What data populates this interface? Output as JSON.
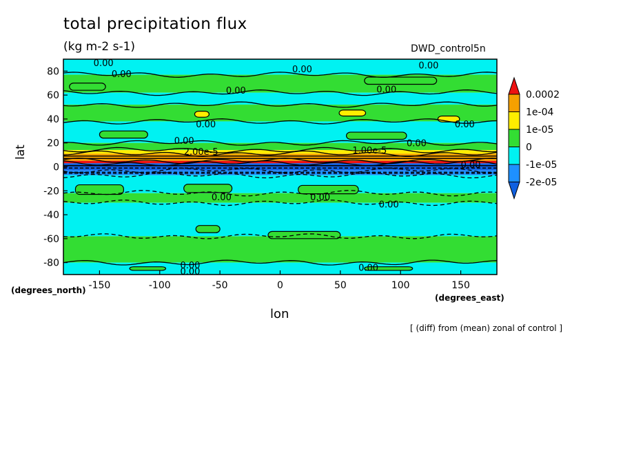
{
  "chart_data": {
    "type": "heatmap",
    "title": "total precipitation flux",
    "units": "(kg m-2 s-1)",
    "run_label": "DWD_control5n",
    "xlabel": "lon",
    "ylabel": "lat",
    "x_unit_label": "(degrees_east)",
    "y_unit_label": "(degrees_north)",
    "note": "[ (diff) from (mean) zonal of control ]",
    "xlim": [
      -180,
      180
    ],
    "ylim": [
      -90,
      90
    ],
    "x_ticks": [
      -150,
      -100,
      -50,
      0,
      50,
      100,
      150
    ],
    "y_ticks": [
      -80,
      -60,
      -40,
      -20,
      0,
      20,
      40,
      60,
      80
    ],
    "x_tick_labels": [
      "-150",
      "-100",
      "-50",
      "0",
      "50",
      "100",
      "150"
    ],
    "y_tick_labels": [
      "-80",
      "-60",
      "-40",
      "-20",
      "0",
      "20",
      "40",
      "60",
      "80"
    ],
    "colorbar": {
      "labels": [
        "0.0002",
        "1e-04",
        "1e-05",
        "0",
        "-1e-05",
        "-2e-05"
      ],
      "bins": [
        {
          "lo": "0.0002",
          "color": "#ee1111"
        },
        {
          "lo": "1e-04",
          "hi": "0.0002",
          "color": "#f5a000"
        },
        {
          "lo": "1e-05",
          "hi": "1e-04",
          "color": "#ffee00"
        },
        {
          "lo": "0",
          "hi": "1e-05",
          "color": "#33dd33"
        },
        {
          "lo": "-1e-05",
          "hi": "0",
          "color": "#00f2f2"
        },
        {
          "lo": "-2e-05",
          "hi": "-1e-05",
          "color": "#1e90ff"
        },
        {
          "hi": "-2e-05",
          "color": "#1060e0"
        }
      ]
    },
    "zonal_bands": [
      {
        "lat_min": 77,
        "lat_max": 90,
        "color": "#00f2f2"
      },
      {
        "lat_min": 62,
        "lat_max": 77,
        "color": "#33dd33"
      },
      {
        "lat_min": 52,
        "lat_max": 62,
        "color": "#00f2f2"
      },
      {
        "lat_min": 38,
        "lat_max": 52,
        "color": "#33dd33"
      },
      {
        "lat_min": 20,
        "lat_max": 38,
        "color": "#00f2f2"
      },
      {
        "lat_min": 14,
        "lat_max": 20,
        "color": "#33dd33"
      },
      {
        "lat_min": 11,
        "lat_max": 14,
        "color": "#ffee00"
      },
      {
        "lat_min": 5,
        "lat_max": 11,
        "color": "#f5a000"
      },
      {
        "lat_min": 3,
        "lat_max": 5,
        "color": "#ee1111"
      },
      {
        "lat_min": -3,
        "lat_max": 3,
        "color": "#1060e0"
      },
      {
        "lat_min": -7,
        "lat_max": -3,
        "color": "#1e90ff"
      },
      {
        "lat_min": -22,
        "lat_max": -7,
        "color": "#00f2f2"
      },
      {
        "lat_min": -30,
        "lat_max": -22,
        "color": "#33dd33"
      },
      {
        "lat_min": -58,
        "lat_max": -30,
        "color": "#00f2f2"
      },
      {
        "lat_min": -80,
        "lat_max": -58,
        "color": "#33dd33"
      },
      {
        "lat_min": -90,
        "lat_max": -80,
        "color": "#00f2f2"
      }
    ],
    "patches": [
      {
        "lon": -65,
        "lat": 44,
        "w": 12,
        "h": 5,
        "color": "#ffee00"
      },
      {
        "lon": 60,
        "lat": 45,
        "w": 22,
        "h": 5,
        "color": "#ffee00"
      },
      {
        "lon": 140,
        "lat": 40,
        "w": 18,
        "h": 5,
        "color": "#ffee00"
      },
      {
        "lon": -150,
        "lat": -19,
        "w": 40,
        "h": 8,
        "color": "#33dd33"
      },
      {
        "lon": -60,
        "lat": -18,
        "w": 40,
        "h": 7,
        "color": "#33dd33"
      },
      {
        "lon": 40,
        "lat": -19,
        "w": 50,
        "h": 7,
        "color": "#33dd33"
      },
      {
        "lon": -160,
        "lat": 67,
        "w": 30,
        "h": 6,
        "color": "#33dd33"
      },
      {
        "lon": 100,
        "lat": 72,
        "w": 60,
        "h": 6,
        "color": "#33dd33"
      },
      {
        "lon": -130,
        "lat": 27,
        "w": 40,
        "h": 6,
        "color": "#33dd33"
      },
      {
        "lon": 80,
        "lat": 26,
        "w": 50,
        "h": 6,
        "color": "#33dd33"
      },
      {
        "lon": 20,
        "lat": -57,
        "w": 60,
        "h": 6,
        "color": "#33dd33"
      },
      {
        "lon": -60,
        "lat": -52,
        "w": 20,
        "h": 6,
        "color": "#33dd33"
      },
      {
        "lon": -110,
        "lat": -85,
        "w": 30,
        "h": 3,
        "color": "#33dd33"
      },
      {
        "lon": 90,
        "lat": -85,
        "w": 40,
        "h": 3,
        "color": "#33dd33"
      }
    ],
    "contour_labels": [
      {
        "text": "0.00",
        "lon": -155,
        "lat": 87
      },
      {
        "text": "0.00",
        "lon": -140,
        "lat": 78
      },
      {
        "text": "0.00",
        "lon": 10,
        "lat": 82
      },
      {
        "text": "0.00",
        "lon": 115,
        "lat": 85
      },
      {
        "text": "0.00",
        "lon": -45,
        "lat": 64
      },
      {
        "text": "0.00",
        "lon": 80,
        "lat": 65
      },
      {
        "text": "0.00",
        "lon": -70,
        "lat": 36
      },
      {
        "text": "0.00",
        "lon": 145,
        "lat": 36
      },
      {
        "text": "0.00",
        "lon": -88,
        "lat": 22
      },
      {
        "text": "0.00",
        "lon": 105,
        "lat": 20
      },
      {
        "text": "2.00e-5",
        "lon": -80,
        "lat": 13
      },
      {
        "text": "1.00e-5",
        "lon": 60,
        "lat": 14
      },
      {
        "text": "0.00",
        "lon": 150,
        "lat": 2
      },
      {
        "text": "0.00",
        "lon": -57,
        "lat": -25
      },
      {
        "text": "0.00",
        "lon": 25,
        "lat": -25
      },
      {
        "text": "0.00",
        "lon": 82,
        "lat": -31
      },
      {
        "text": "0.00",
        "lon": -83,
        "lat": -82
      },
      {
        "text": "0.00",
        "lon": -83,
        "lat": -87
      },
      {
        "text": "0.00",
        "lon": 65,
        "lat": -84
      }
    ]
  }
}
